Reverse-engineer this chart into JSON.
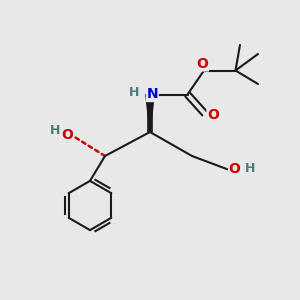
{
  "bg_color": "#e8e8e8",
  "atom_colors": {
    "C": "#1a1a1a",
    "H": "#4a7a7a",
    "N": "#0000cc",
    "O": "#cc0000"
  },
  "bond_color": "#1a1a1a"
}
